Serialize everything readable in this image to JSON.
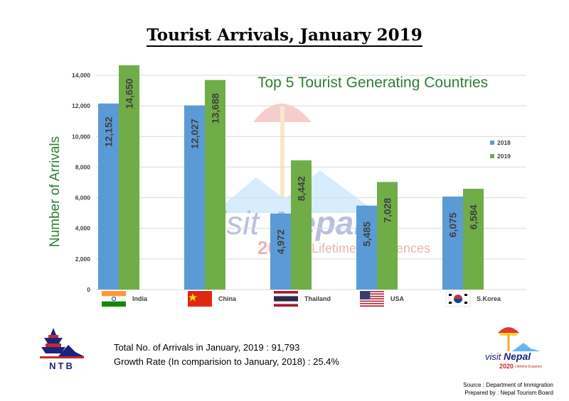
{
  "page": {
    "title": "Tourist Arrivals, January 2019",
    "subtitle": "Top 5 Tourist Generating Countries"
  },
  "chart_data": {
    "type": "bar",
    "title": "Top 5 Tourist Generating Countries",
    "ylabel": "Number of Arrivals",
    "xlabel": "",
    "ylim": [
      0,
      14000
    ],
    "yticks": [
      0,
      2000,
      4000,
      6000,
      8000,
      10000,
      12000,
      14000
    ],
    "ytick_labels": [
      "0",
      "2,000",
      "4,000",
      "6,000",
      "8,000",
      "10,000",
      "12,000",
      "14,000"
    ],
    "grid": true,
    "legend_placement": "right",
    "categories": [
      "India",
      "China",
      "Thailand",
      "USA",
      "S.Korea"
    ],
    "series": [
      {
        "name": "2018",
        "color": "#5b9bd5",
        "values": [
          12152,
          12027,
          4972,
          5485,
          6075
        ],
        "labels": [
          "12,152",
          "12,027",
          "4,972",
          "5,485",
          "6,075"
        ]
      },
      {
        "name": "2019",
        "color": "#70ad47",
        "values": [
          14650,
          13688,
          8442,
          7028,
          6584
        ],
        "labels": [
          "14,650",
          "13,688",
          "8,442",
          "7,028",
          "6,584"
        ]
      }
    ]
  },
  "flags": [
    "india-flag-icon",
    "china-flag-icon",
    "thailand-flag-icon",
    "usa-flag-icon",
    "south-korea-flag-icon"
  ],
  "summary": {
    "total_line": "Total No. of Arrivals in January, 2019 : 91,793",
    "growth_line": "Growth Rate (In comparision to January, 2018) : 25.4%"
  },
  "footer": {
    "source": "Source : Department of Immigration",
    "prepared": "Prepared by : Nepal Tourism Board"
  },
  "logos": {
    "ntb_text": "NTB",
    "visit_text": "visit",
    "nepal_text": "Nepal",
    "year_text": "2020",
    "tagline": "Lifetime Experiences"
  }
}
